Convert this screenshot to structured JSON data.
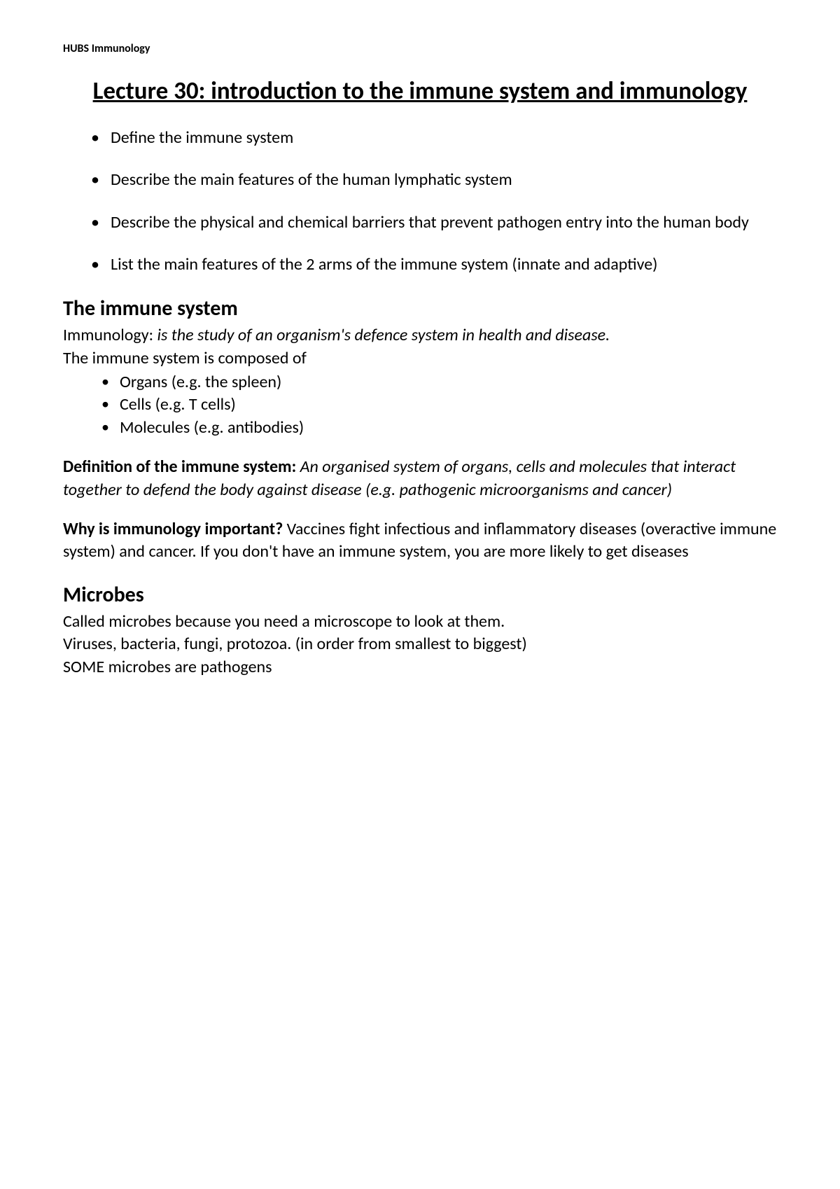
{
  "header": {
    "label": "HUBS Immunology"
  },
  "title": "Lecture 30: introduction to the immune system and immunology",
  "objectives": [
    "Define the immune system",
    "Describe the main features of the human lymphatic system",
    "Describe the physical and chemical barriers that prevent pathogen entry into the human body",
    "List the main features of the 2 arms of the immune system (innate and adaptive)"
  ],
  "section1": {
    "heading": "The immune system",
    "intro_label": "Immunology: ",
    "intro_definition": "is the study of an organism's defence system in health and disease.",
    "composed_intro": "The immune system is composed of",
    "composed_items": [
      "Organs (e.g. the spleen)",
      "Cells (e.g. T cells)",
      "Molecules (e.g. antibodies)"
    ],
    "definition_label": "Definition of the immune system: ",
    "definition_text": "An organised system of organs, cells and molecules that interact together to defend the body against disease (e.g. pathogenic microorganisms and cancer)",
    "importance_label": "Why is immunology important? ",
    "importance_text": "Vaccines fight infectious and inflammatory diseases (overactive immune system) and cancer. If you don't have an immune system, you are more likely to get diseases"
  },
  "section2": {
    "heading": "Microbes",
    "line1": "Called microbes because you need a microscope to look at them.",
    "line2": "Viruses, bacteria, fungi, protozoa. (in order from smallest to biggest)",
    "line3": "SOME microbes are pathogens"
  }
}
